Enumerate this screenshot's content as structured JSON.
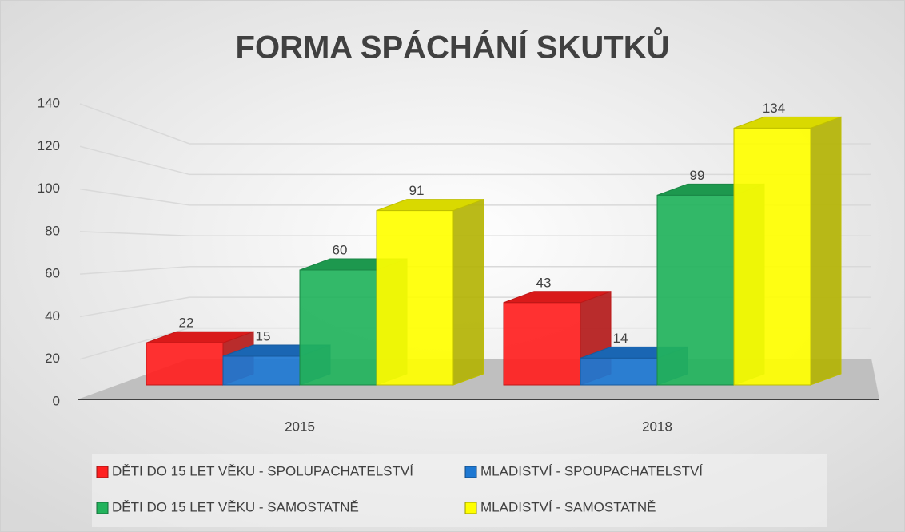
{
  "chart_data": {
    "type": "bar3d",
    "title": "FORMA SPÁCHÁNÍ SKUTKŮ",
    "categories": [
      "2015",
      "2018"
    ],
    "series": [
      {
        "name": "DĚTI DO 15 LET VĚKU - SPOLUPACHATELSTVÍ",
        "color": "#ff1f1f",
        "values": [
          22,
          43
        ]
      },
      {
        "name": "MLADISTVÍ - SPOUPACHATELSTVÍ",
        "color": "#1e78d2",
        "values": [
          15,
          14
        ]
      },
      {
        "name": "DĚTI DO 15 LET VĚKU - SAMOSTATNĚ",
        "color": "#22b35c",
        "values": [
          60,
          99
        ]
      },
      {
        "name": "MLADISTVÍ - SAMOSTATNĚ",
        "color": "#ffff00",
        "values": [
          91,
          134
        ]
      }
    ],
    "ylim": [
      0,
      140
    ],
    "yticks": [
      0,
      20,
      40,
      60,
      80,
      100,
      120,
      140
    ],
    "grid": true,
    "legend": "bottom"
  }
}
